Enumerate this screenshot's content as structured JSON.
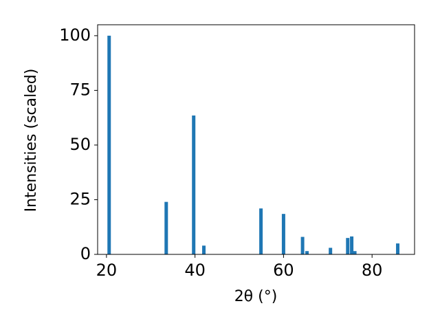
{
  "chart_data": {
    "type": "bar",
    "x": [
      20.6,
      33.5,
      39.7,
      42.0,
      54.9,
      60.0,
      64.3,
      65.3,
      70.6,
      74.5,
      75.4,
      76.1,
      85.8
    ],
    "values": [
      100,
      24,
      63.5,
      4,
      21,
      18.5,
      8,
      1.5,
      3,
      7.5,
      8.2,
      1.5,
      5
    ],
    "color": "#1f77b4",
    "xlabel": "2θ (°)",
    "ylabel": "Intensities (scaled)",
    "xlim": [
      18,
      89.6
    ],
    "ylim": [
      0,
      105
    ],
    "xticks": [
      20,
      40,
      60,
      80
    ],
    "yticks": [
      0,
      25,
      50,
      75,
      100
    ]
  }
}
